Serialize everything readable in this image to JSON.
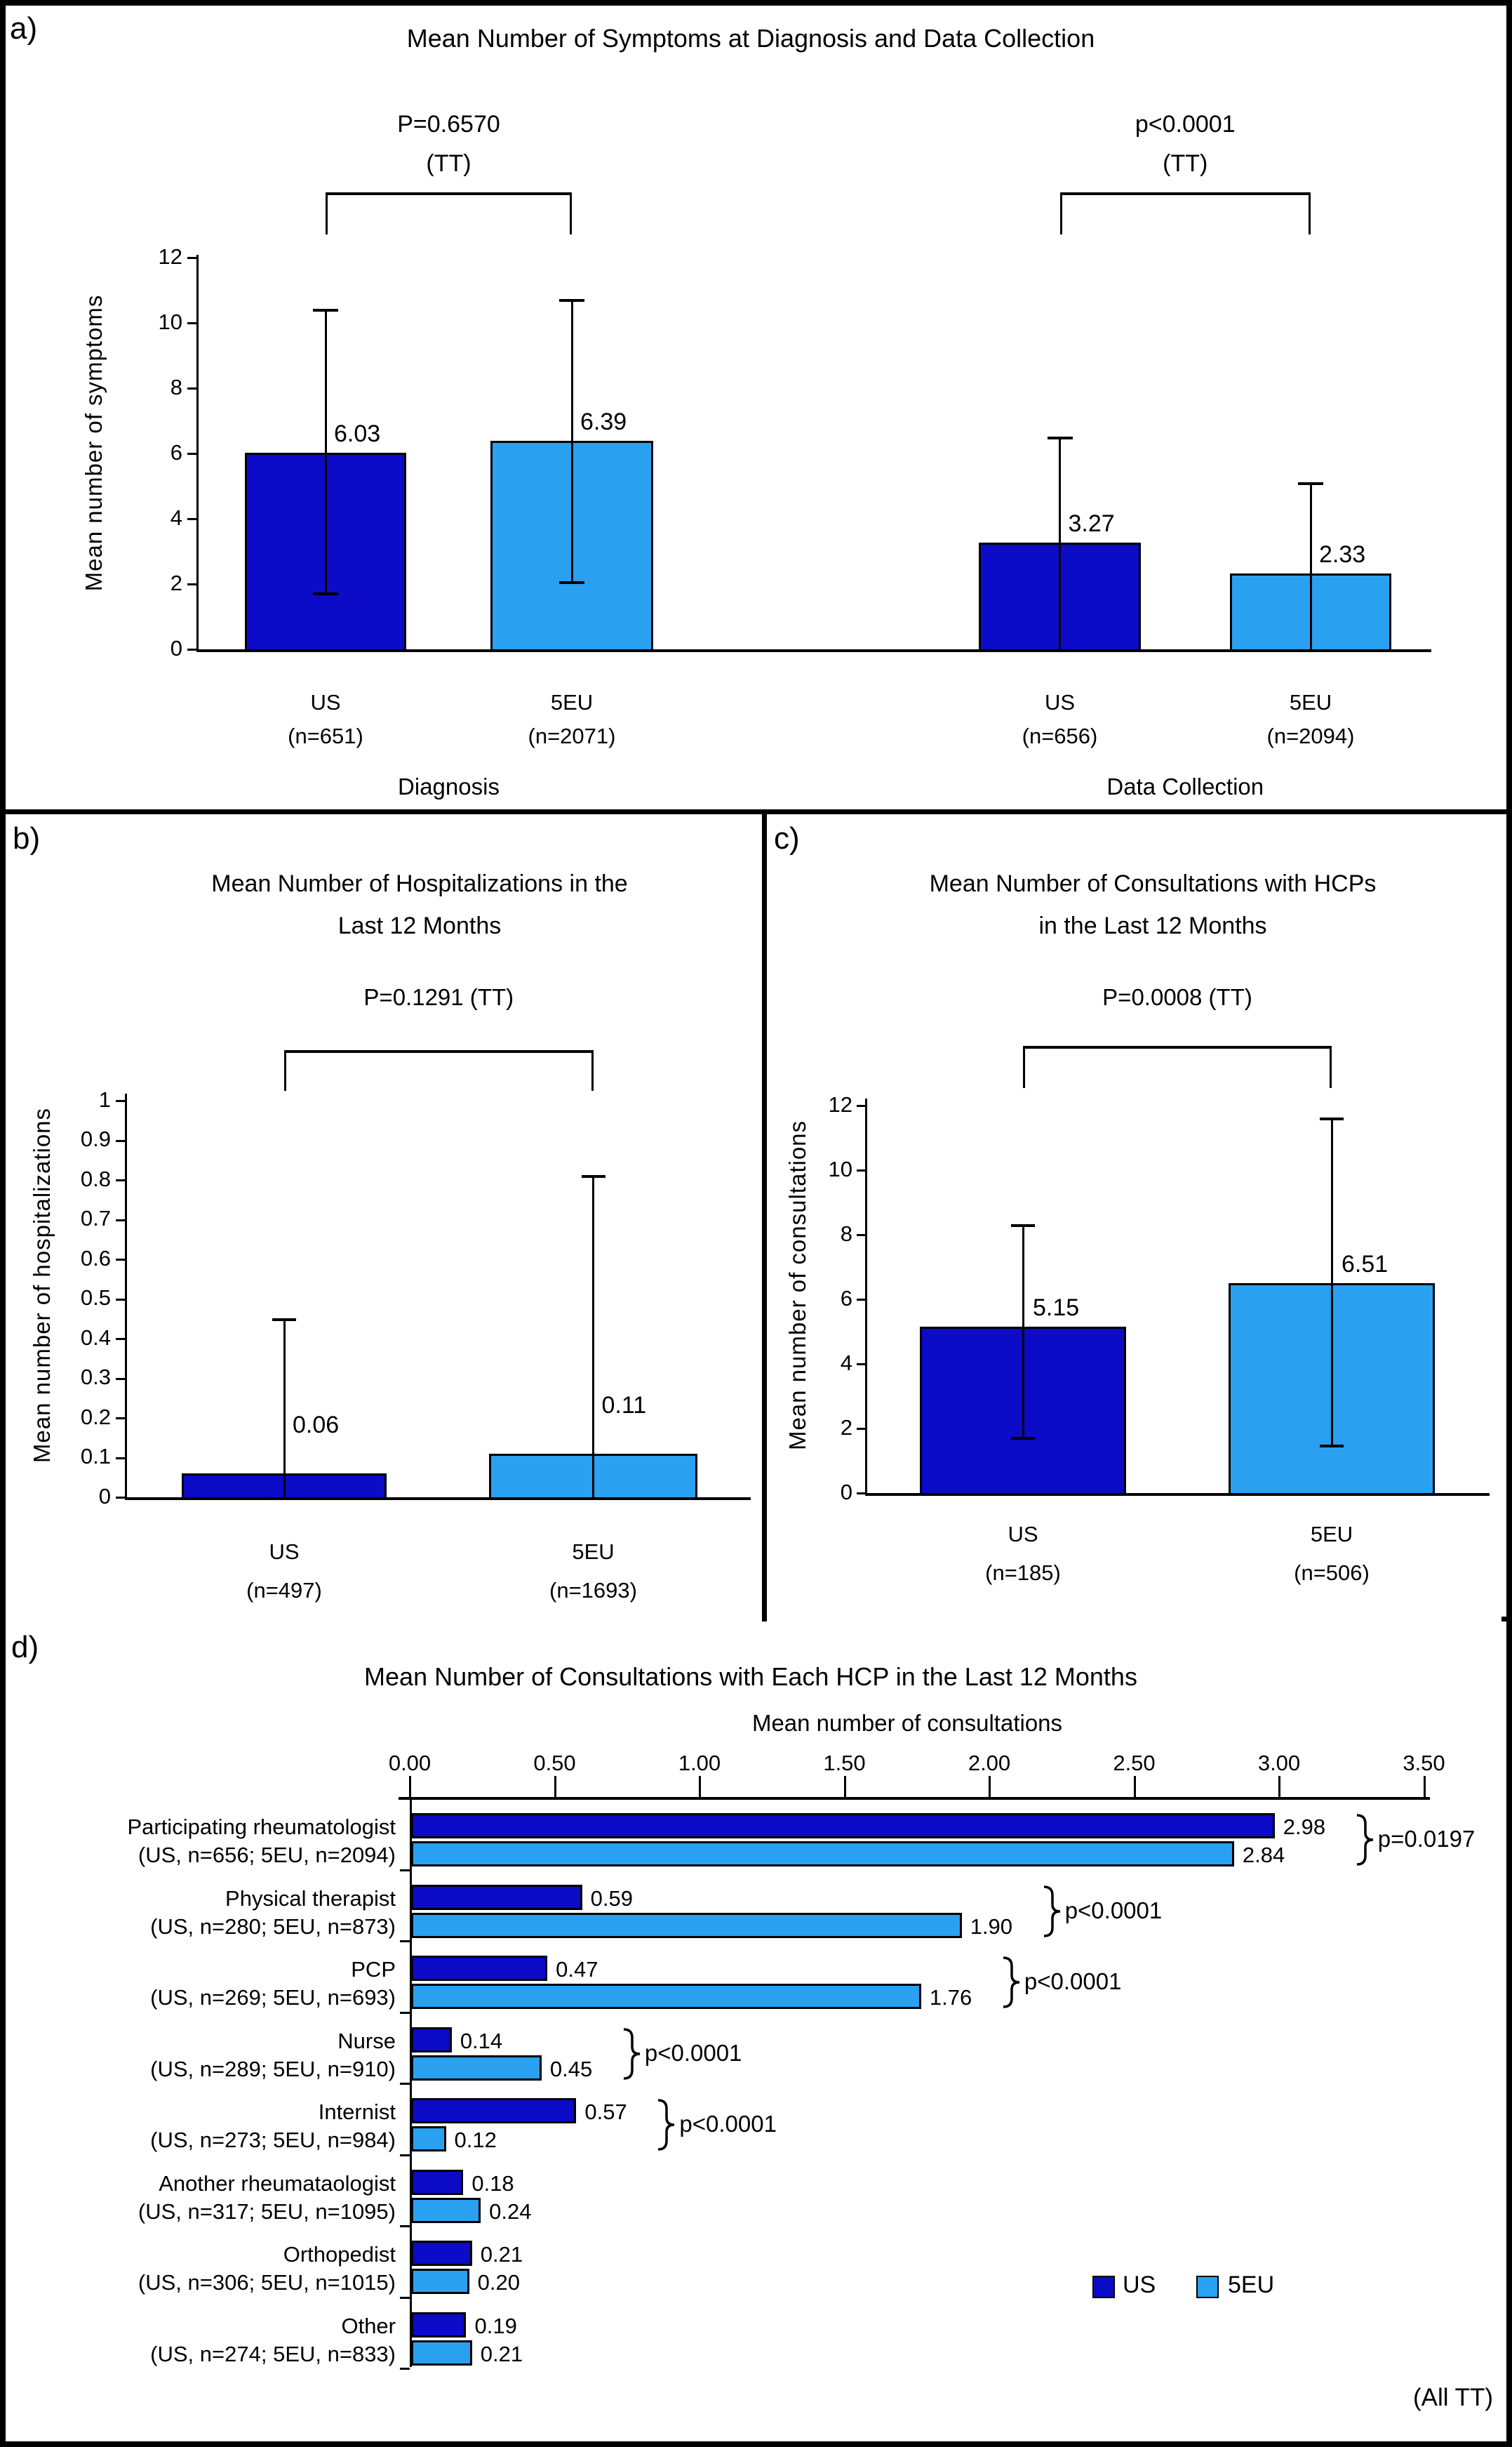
{
  "colors": {
    "us": "#0b0bc8",
    "eu": "#29a1f0",
    "line": "#000000"
  },
  "legend": {
    "us": "US",
    "eu": "5EU"
  },
  "chart_data": [
    {
      "id": "a",
      "panel_label": "a)",
      "type": "bar",
      "title": "Mean Number of Symptoms at Diagnosis and Data Collection",
      "ylabel": "Mean number of symptoms",
      "ylim": [
        0,
        12
      ],
      "ytick_step": 2,
      "yticks": [
        "0",
        "2",
        "4",
        "6",
        "8",
        "10",
        "12"
      ],
      "significance": [
        {
          "text": "P=0.6570",
          "sub": "(TT)",
          "bars": [
            0,
            1
          ]
        },
        {
          "text": "p<0.0001",
          "sub": "(TT)",
          "bars": [
            2,
            3
          ]
        }
      ],
      "groups": [
        {
          "label": "Diagnosis",
          "bars": [
            0,
            1
          ]
        },
        {
          "label": "Data Collection",
          "bars": [
            2,
            3
          ]
        }
      ],
      "bars": [
        {
          "series": "US",
          "label": "US",
          "n": "(n=651)",
          "value": 6.03,
          "value_label": "6.03",
          "err_lo": 1.7,
          "err_hi": 10.4,
          "cap_lo": true
        },
        {
          "series": "5EU",
          "label": "5EU",
          "n": "(n=2071)",
          "value": 6.39,
          "value_label": "6.39",
          "err_lo": 2.05,
          "err_hi": 10.7,
          "cap_lo": true
        },
        {
          "series": "US",
          "label": "US",
          "n": "(n=656)",
          "value": 3.27,
          "value_label": "3.27",
          "err_lo": 0,
          "err_hi": 6.5,
          "cap_lo": false
        },
        {
          "series": "5EU",
          "label": "5EU",
          "n": "(n=2094)",
          "value": 2.33,
          "value_label": "2.33",
          "err_lo": 0,
          "err_hi": 5.1,
          "cap_lo": false
        }
      ]
    },
    {
      "id": "b",
      "panel_label": "b)",
      "type": "bar",
      "title_lines": [
        "Mean Number of Hospitalizations in the",
        "Last 12 Months"
      ],
      "ylabel": "Mean number of hospitalizations",
      "ylim": [
        0,
        1
      ],
      "ytick_step": 0.1,
      "yticks": [
        "0",
        "0.1",
        "0.2",
        "0.3",
        "0.4",
        "0.5",
        "0.6",
        "0.7",
        "0.8",
        "0.9",
        "1"
      ],
      "significance": [
        {
          "text": "P=0.1291 (TT)",
          "bars": [
            0,
            1
          ]
        }
      ],
      "bars": [
        {
          "series": "US",
          "label": "US",
          "n": "(n=497)",
          "value": 0.06,
          "value_label": "0.06",
          "err_lo": 0,
          "err_hi": 0.45,
          "cap_lo": false
        },
        {
          "series": "5EU",
          "label": "5EU",
          "n": "(n=1693)",
          "value": 0.11,
          "value_label": "0.11",
          "err_lo": 0,
          "err_hi": 0.81,
          "cap_lo": false
        }
      ]
    },
    {
      "id": "c",
      "panel_label": "c)",
      "type": "bar",
      "title_lines": [
        "Mean Number of Consultations with HCPs",
        "in the Last 12 Months"
      ],
      "ylabel": "Mean number of consultations",
      "ylim": [
        0,
        12
      ],
      "ytick_step": 2,
      "yticks": [
        "0",
        "2",
        "4",
        "6",
        "8",
        "10",
        "12"
      ],
      "significance": [
        {
          "text": "P=0.0008 (TT)",
          "bars": [
            0,
            1
          ]
        }
      ],
      "bars": [
        {
          "series": "US",
          "label": "US",
          "n": "(n=185)",
          "value": 5.15,
          "value_label": "5.15",
          "err_lo": 1.7,
          "err_hi": 8.3,
          "cap_lo": true
        },
        {
          "series": "5EU",
          "label": "5EU",
          "n": "(n=506)",
          "value": 6.51,
          "value_label": "6.51",
          "err_lo": 1.45,
          "err_hi": 11.6,
          "cap_lo": true
        }
      ]
    },
    {
      "id": "d",
      "panel_label": "d)",
      "type": "bar-horizontal",
      "title": "Mean Number of Consultations with Each HCP in the Last 12 Months",
      "xlabel": "Mean number of consultations",
      "xlim": [
        0,
        3.5
      ],
      "xtick_step": 0.5,
      "xticks": [
        "0.00",
        "0.50",
        "1.00",
        "1.50",
        "2.00",
        "2.50",
        "3.00",
        "3.50"
      ],
      "categories": [
        {
          "name": "Participating rheumatologist",
          "sub": "(US, n=656; 5EU, n=2094)",
          "us": 2.98,
          "eu": 2.84,
          "us_label": "2.98",
          "eu_label": "2.84",
          "p": "p=0.0197"
        },
        {
          "name": "Physical therapist",
          "sub": "(US, n=280; 5EU, n=873)",
          "us": 0.59,
          "eu": 1.9,
          "us_label": "0.59",
          "eu_label": "1.90",
          "p": "p<0.0001"
        },
        {
          "name": "PCP",
          "sub": "(US, n=269; 5EU, n=693)",
          "us": 0.47,
          "eu": 1.76,
          "us_label": "0.47",
          "eu_label": "1.76",
          "p": "p<0.0001"
        },
        {
          "name": "Nurse",
          "sub": "(US, n=289; 5EU, n=910)",
          "us": 0.14,
          "eu": 0.45,
          "us_label": "0.14",
          "eu_label": "0.45",
          "p": "p<0.0001"
        },
        {
          "name": "Internist",
          "sub": "(US, n=273; 5EU, n=984)",
          "us": 0.57,
          "eu": 0.12,
          "us_label": "0.57",
          "eu_label": "0.12",
          "p": "p<0.0001"
        },
        {
          "name": "Another rheumataologist",
          "sub": "(US, n=317; 5EU, n=1095)",
          "us": 0.18,
          "eu": 0.24,
          "us_label": "0.18",
          "eu_label": "0.24",
          "p": null
        },
        {
          "name": "Orthopedist",
          "sub": "(US, n=306; 5EU, n=1015)",
          "us": 0.21,
          "eu": 0.2,
          "us_label": "0.21",
          "eu_label": "0.20",
          "p": null
        },
        {
          "name": "Other",
          "sub": "(US, n=274; 5EU, n=833)",
          "us": 0.19,
          "eu": 0.21,
          "us_label": "0.19",
          "eu_label": "0.21",
          "p": null
        }
      ],
      "legend": [
        "US",
        "5EU"
      ],
      "footnote": "(All TT)"
    }
  ]
}
